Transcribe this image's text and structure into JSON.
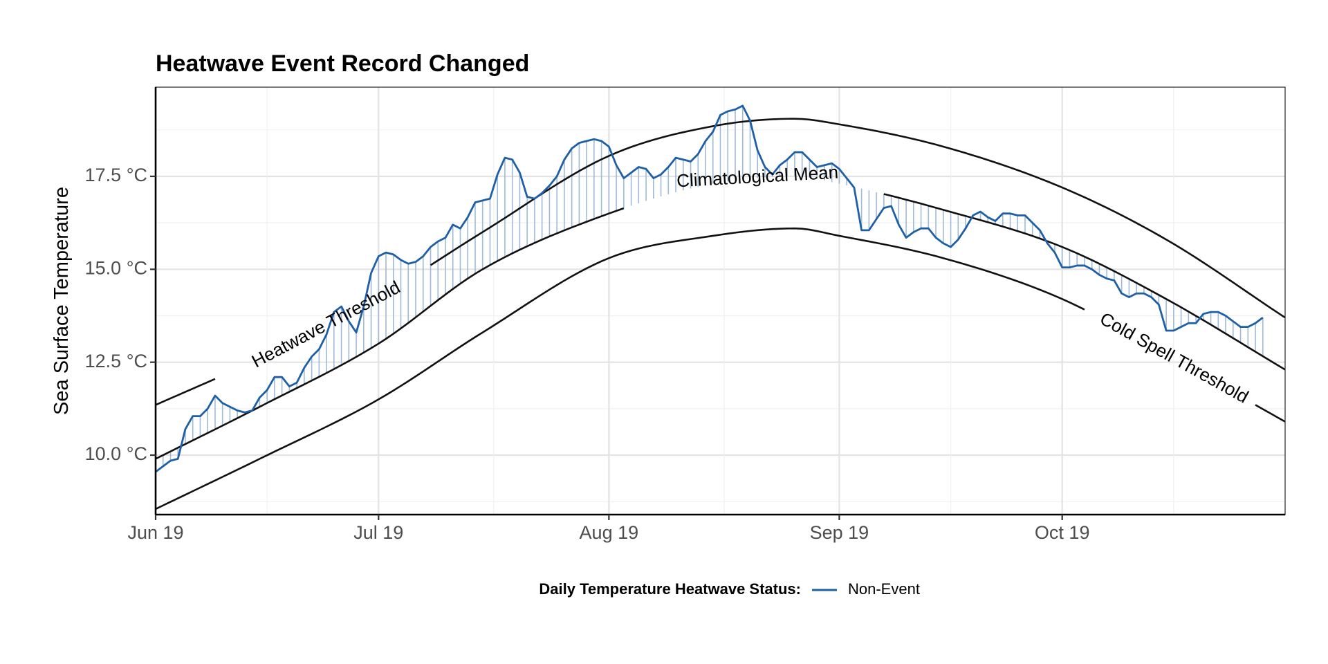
{
  "chart_data": {
    "type": "line",
    "title": "Heatwave Event Record Changed",
    "xlabel": "",
    "ylabel": "Sea Surface Temperature",
    "x_range": [
      "2019-06-01",
      "2019-10-31"
    ],
    "ylim": [
      8.4,
      19.9
    ],
    "x_ticks": [
      {
        "date": "2019-06-01",
        "label": "Jun 19"
      },
      {
        "date": "2019-07-01",
        "label": "Jul 19"
      },
      {
        "date": "2019-08-01",
        "label": "Aug 19"
      },
      {
        "date": "2019-09-01",
        "label": "Sep 19"
      },
      {
        "date": "2019-10-01",
        "label": "Oct 19"
      }
    ],
    "y_ticks": [
      {
        "value": 10.0,
        "label": "10.0 °C"
      },
      {
        "value": 12.5,
        "label": "12.5 °C"
      },
      {
        "value": 15.0,
        "label": "15.0 °C"
      },
      {
        "value": 17.5,
        "label": "17.5 °C"
      }
    ],
    "grid": true,
    "legend": {
      "title": "Daily Temperature Heatwave Status:",
      "position": "bottom",
      "entries": [
        {
          "label": "Non-Event",
          "color": "#1f5fa6"
        }
      ]
    },
    "colors": {
      "temperature": "#1f5fa6",
      "segments": "#9fbad9",
      "reference_lines": "#111111"
    },
    "curves": {
      "threshold": {
        "label": "Heatwave Threshold",
        "points": [
          [
            "2019-06-01",
            11.35
          ],
          [
            "2019-06-15",
            12.6
          ],
          [
            "2019-07-01",
            14.25
          ],
          [
            "2019-07-15",
            16.0
          ],
          [
            "2019-08-01",
            18.05
          ],
          [
            "2019-08-15",
            18.85
          ],
          [
            "2019-08-26",
            19.05
          ],
          [
            "2019-09-01",
            18.9
          ],
          [
            "2019-09-15",
            18.3
          ],
          [
            "2019-10-01",
            17.2
          ],
          [
            "2019-10-15",
            15.8
          ],
          [
            "2019-10-31",
            13.7
          ]
        ]
      },
      "climatology": {
        "label": "Climatological Mean",
        "points": [
          [
            "2019-06-01",
            9.9
          ],
          [
            "2019-06-15",
            11.3
          ],
          [
            "2019-07-01",
            13.0
          ],
          [
            "2019-07-15",
            15.0
          ],
          [
            "2019-08-01",
            16.5
          ],
          [
            "2019-08-15",
            17.3
          ],
          [
            "2019-08-26",
            17.5
          ],
          [
            "2019-09-01",
            17.3
          ],
          [
            "2019-09-15",
            16.6
          ],
          [
            "2019-10-01",
            15.6
          ],
          [
            "2019-10-15",
            14.2
          ],
          [
            "2019-10-31",
            12.3
          ]
        ]
      },
      "cold_threshold": {
        "label": "Cold Spell Threshold",
        "points": [
          [
            "2019-06-01",
            8.55
          ],
          [
            "2019-06-15",
            9.9
          ],
          [
            "2019-07-01",
            11.5
          ],
          [
            "2019-07-15",
            13.3
          ],
          [
            "2019-08-01",
            15.3
          ],
          [
            "2019-08-15",
            15.9
          ],
          [
            "2019-08-26",
            16.1
          ],
          [
            "2019-09-01",
            15.9
          ],
          [
            "2019-09-15",
            15.3
          ],
          [
            "2019-10-01",
            14.2
          ],
          [
            "2019-10-15",
            12.7
          ],
          [
            "2019-10-31",
            10.9
          ]
        ]
      }
    },
    "series": [
      {
        "name": "Non-Event",
        "values": [
          [
            "2019-06-01",
            9.55
          ],
          [
            "2019-06-02",
            9.7
          ],
          [
            "2019-06-03",
            9.85
          ],
          [
            "2019-06-04",
            9.9
          ],
          [
            "2019-06-05",
            10.7
          ],
          [
            "2019-06-06",
            11.05
          ],
          [
            "2019-06-07",
            11.05
          ],
          [
            "2019-06-08",
            11.25
          ],
          [
            "2019-06-09",
            11.6
          ],
          [
            "2019-06-10",
            11.4
          ],
          [
            "2019-06-11",
            11.3
          ],
          [
            "2019-06-12",
            11.2
          ],
          [
            "2019-06-13",
            11.15
          ],
          [
            "2019-06-14",
            11.2
          ],
          [
            "2019-06-15",
            11.55
          ],
          [
            "2019-06-16",
            11.75
          ],
          [
            "2019-06-17",
            12.1
          ],
          [
            "2019-06-18",
            12.1
          ],
          [
            "2019-06-19",
            11.85
          ],
          [
            "2019-06-20",
            11.95
          ],
          [
            "2019-06-21",
            12.35
          ],
          [
            "2019-06-22",
            12.65
          ],
          [
            "2019-06-23",
            12.85
          ],
          [
            "2019-06-24",
            13.25
          ],
          [
            "2019-06-25",
            13.85
          ],
          [
            "2019-06-26",
            14.0
          ],
          [
            "2019-06-27",
            13.6
          ],
          [
            "2019-06-28",
            13.3
          ],
          [
            "2019-06-29",
            14.0
          ],
          [
            "2019-06-30",
            14.9
          ],
          [
            "2019-07-01",
            15.35
          ],
          [
            "2019-07-02",
            15.45
          ],
          [
            "2019-07-03",
            15.4
          ],
          [
            "2019-07-04",
            15.25
          ],
          [
            "2019-07-05",
            15.15
          ],
          [
            "2019-07-06",
            15.2
          ],
          [
            "2019-07-07",
            15.35
          ],
          [
            "2019-07-08",
            15.6
          ],
          [
            "2019-07-09",
            15.75
          ],
          [
            "2019-07-10",
            15.85
          ],
          [
            "2019-07-11",
            16.2
          ],
          [
            "2019-07-12",
            16.1
          ],
          [
            "2019-07-13",
            16.4
          ],
          [
            "2019-07-14",
            16.8
          ],
          [
            "2019-07-15",
            16.85
          ],
          [
            "2019-07-16",
            16.9
          ],
          [
            "2019-07-17",
            17.55
          ],
          [
            "2019-07-18",
            18.0
          ],
          [
            "2019-07-19",
            17.95
          ],
          [
            "2019-07-20",
            17.6
          ],
          [
            "2019-07-21",
            16.95
          ],
          [
            "2019-07-22",
            16.9
          ],
          [
            "2019-07-23",
            17.05
          ],
          [
            "2019-07-24",
            17.25
          ],
          [
            "2019-07-25",
            17.5
          ],
          [
            "2019-07-26",
            17.95
          ],
          [
            "2019-07-27",
            18.25
          ],
          [
            "2019-07-28",
            18.4
          ],
          [
            "2019-07-29",
            18.45
          ],
          [
            "2019-07-30",
            18.5
          ],
          [
            "2019-07-31",
            18.45
          ],
          [
            "2019-08-01",
            18.3
          ],
          [
            "2019-08-02",
            17.8
          ],
          [
            "2019-08-03",
            17.45
          ],
          [
            "2019-08-04",
            17.6
          ],
          [
            "2019-08-05",
            17.75
          ],
          [
            "2019-08-06",
            17.7
          ],
          [
            "2019-08-07",
            17.45
          ],
          [
            "2019-08-08",
            17.55
          ],
          [
            "2019-08-09",
            17.75
          ],
          [
            "2019-08-10",
            18.0
          ],
          [
            "2019-08-11",
            17.95
          ],
          [
            "2019-08-12",
            17.9
          ],
          [
            "2019-08-13",
            18.1
          ],
          [
            "2019-08-14",
            18.45
          ],
          [
            "2019-08-15",
            18.7
          ],
          [
            "2019-08-16",
            19.15
          ],
          [
            "2019-08-17",
            19.25
          ],
          [
            "2019-08-18",
            19.3
          ],
          [
            "2019-08-19",
            19.4
          ],
          [
            "2019-08-20",
            19.0
          ],
          [
            "2019-08-21",
            18.2
          ],
          [
            "2019-08-22",
            17.75
          ],
          [
            "2019-08-23",
            17.55
          ],
          [
            "2019-08-24",
            17.8
          ],
          [
            "2019-08-25",
            17.95
          ],
          [
            "2019-08-26",
            18.15
          ],
          [
            "2019-08-27",
            18.15
          ],
          [
            "2019-08-28",
            17.95
          ],
          [
            "2019-08-29",
            17.75
          ],
          [
            "2019-08-30",
            17.8
          ],
          [
            "2019-08-31",
            17.85
          ],
          [
            "2019-09-01",
            17.7
          ],
          [
            "2019-09-02",
            17.45
          ],
          [
            "2019-09-03",
            17.2
          ],
          [
            "2019-09-04",
            16.05
          ],
          [
            "2019-09-05",
            16.05
          ],
          [
            "2019-09-06",
            16.35
          ],
          [
            "2019-09-07",
            16.65
          ],
          [
            "2019-09-08",
            16.7
          ],
          [
            "2019-09-09",
            16.2
          ],
          [
            "2019-09-10",
            15.85
          ],
          [
            "2019-09-11",
            16.0
          ],
          [
            "2019-09-12",
            16.1
          ],
          [
            "2019-09-13",
            16.1
          ],
          [
            "2019-09-14",
            15.85
          ],
          [
            "2019-09-15",
            15.7
          ],
          [
            "2019-09-16",
            15.6
          ],
          [
            "2019-09-17",
            15.8
          ],
          [
            "2019-09-18",
            16.1
          ],
          [
            "2019-09-19",
            16.45
          ],
          [
            "2019-09-20",
            16.55
          ],
          [
            "2019-09-21",
            16.4
          ],
          [
            "2019-09-22",
            16.3
          ],
          [
            "2019-09-23",
            16.5
          ],
          [
            "2019-09-24",
            16.5
          ],
          [
            "2019-09-25",
            16.45
          ],
          [
            "2019-09-26",
            16.45
          ],
          [
            "2019-09-27",
            16.25
          ],
          [
            "2019-09-28",
            16.05
          ],
          [
            "2019-09-29",
            15.7
          ],
          [
            "2019-09-30",
            15.45
          ],
          [
            "2019-10-01",
            15.05
          ],
          [
            "2019-10-02",
            15.05
          ],
          [
            "2019-10-03",
            15.1
          ],
          [
            "2019-10-04",
            15.1
          ],
          [
            "2019-10-05",
            15.0
          ],
          [
            "2019-10-06",
            14.85
          ],
          [
            "2019-10-07",
            14.75
          ],
          [
            "2019-10-08",
            14.7
          ],
          [
            "2019-10-09",
            14.35
          ],
          [
            "2019-10-10",
            14.25
          ],
          [
            "2019-10-11",
            14.35
          ],
          [
            "2019-10-12",
            14.35
          ],
          [
            "2019-10-13",
            14.25
          ],
          [
            "2019-10-14",
            14.05
          ],
          [
            "2019-10-15",
            13.35
          ],
          [
            "2019-10-16",
            13.35
          ],
          [
            "2019-10-17",
            13.45
          ],
          [
            "2019-10-18",
            13.55
          ],
          [
            "2019-10-19",
            13.55
          ],
          [
            "2019-10-20",
            13.8
          ],
          [
            "2019-10-21",
            13.85
          ],
          [
            "2019-10-22",
            13.85
          ],
          [
            "2019-10-23",
            13.75
          ],
          [
            "2019-10-24",
            13.6
          ],
          [
            "2019-10-25",
            13.45
          ],
          [
            "2019-10-26",
            13.45
          ],
          [
            "2019-10-27",
            13.55
          ],
          [
            "2019-10-28",
            13.7
          ]
        ]
      }
    ]
  }
}
